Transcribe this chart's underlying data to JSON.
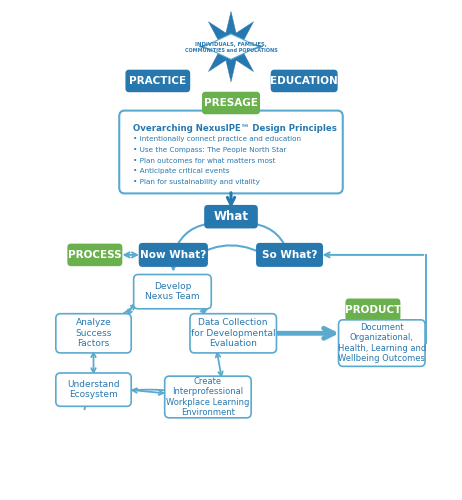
{
  "bg_color": "#ffffff",
  "blue_dark": "#2878b0",
  "blue_med": "#5aaad0",
  "blue_light": "#a8cfe8",
  "green_pill": "#6ab04c",
  "title_color": "#2878b0",
  "text_color": "#2878b0",
  "title": "Overarching NexusIPE™ Design Principles",
  "bullets": [
    "Intentionally connect practice and education",
    "Use the Compass: The People North Star",
    "Plan outcomes for what matters most",
    "Anticipate critical events",
    "Plan for sustainability and vitality"
  ],
  "labels": {
    "practice": "PRACTICE",
    "education": "EDUCATION",
    "presage": "PRESAGE",
    "what": "What",
    "now_what": "Now What?",
    "so_what": "So What?",
    "process": "PROCESS",
    "product": "PRODUCT",
    "develop": "Develop\nNexus Team",
    "analyze": "Analyze\nSuccess\nFactors",
    "data_collection": "Data Collection\nfor Developmental\nEvaluation",
    "understand": "Understand\nEcosystem",
    "create": "Create\nInterprofessional\nWorkplace Learning\nEnvironment",
    "document": "Document\nOrganizational,\nHealth, Learning and\nWellbeing Outcomes",
    "individuals_line1": "INDIVIDUALS, FAMILIES,",
    "individuals_line2": "COMMUNITIES and POPULATIONS"
  }
}
